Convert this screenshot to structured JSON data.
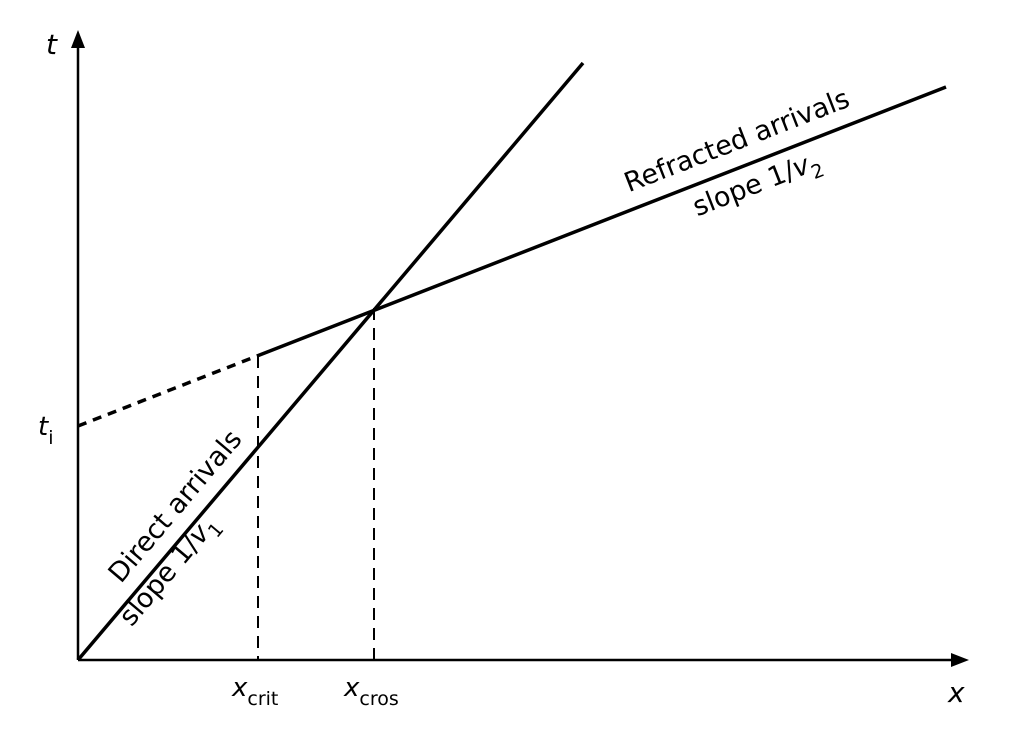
{
  "axes": {
    "x_label": "x",
    "y_label": "t"
  },
  "markers": {
    "ti": {
      "base": "t",
      "sub": "i"
    },
    "xcrit": {
      "base": "x",
      "sub": "crit"
    },
    "xcros": {
      "base": "x",
      "sub": "cros"
    }
  },
  "direct": {
    "title": "Direct arrivals",
    "slope_prefix": "slope 1/",
    "slope_var": "v",
    "slope_sub": "1"
  },
  "refracted": {
    "title": "Refracted arrivals",
    "slope_prefix": "slope 1/",
    "slope_var": "v",
    "slope_sub": "2"
  }
}
